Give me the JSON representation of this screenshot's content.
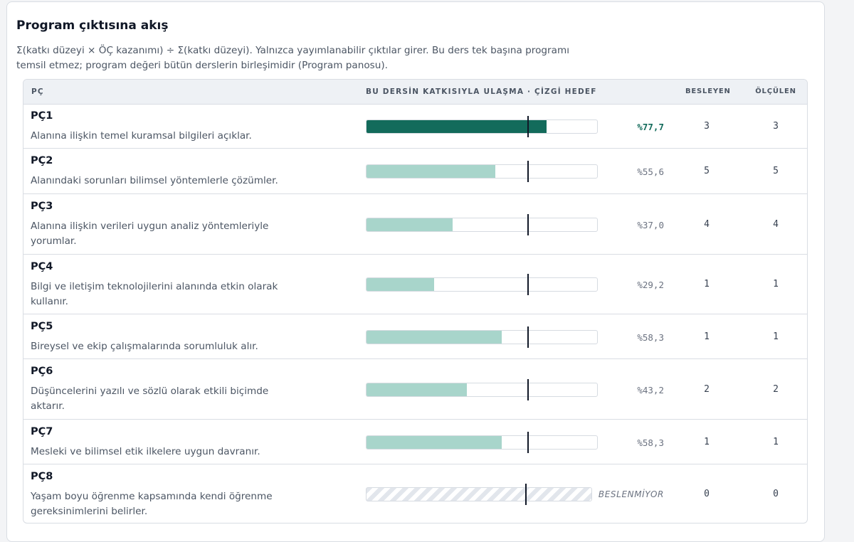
{
  "panel": {
    "title": "Program çıktısına akış",
    "description": "Σ(katkı düzeyi × ÖÇ kazanımı) ÷ Σ(katkı düzeyi). Yalnızca yayımlanabilir çıktılar girer. Bu ders tek başına programı temsil etmez; program değeri bütün derslerin birleşimidir (Program panosu)."
  },
  "table": {
    "headers": {
      "pc": "PÇ",
      "contribution": "BU DERSİN KATKISIYLA ULAŞMA · ÇİZGİ HEDEF",
      "feeding": "BESLEYEN",
      "measured": "ÖLÇÜLEN"
    },
    "target_percent": 70,
    "rows": [
      {
        "code": "PÇ1",
        "text": "Alanına ilişkin temel kuramsal bilgileri açıklar.",
        "value": 77.7,
        "pct_label": "%77,7",
        "feeding": "3",
        "measured": "3",
        "highlight": true
      },
      {
        "code": "PÇ2",
        "text": "Alanındaki sorunları bilimsel yöntemlerle çözümler.",
        "value": 55.6,
        "pct_label": "%55,6",
        "feeding": "5",
        "measured": "5"
      },
      {
        "code": "PÇ3",
        "text": "Alanına ilişkin verileri uygun analiz yöntemleriyle yorumlar.",
        "value": 37.0,
        "pct_label": "%37,0",
        "feeding": "4",
        "measured": "4"
      },
      {
        "code": "PÇ4",
        "text": "Bilgi ve iletişim teknolojilerini alanında etkin olarak kullanır.",
        "value": 29.2,
        "pct_label": "%29,2",
        "feeding": "1",
        "measured": "1"
      },
      {
        "code": "PÇ5",
        "text": "Bireysel ve ekip çalışmalarında sorumluluk alır.",
        "value": 58.3,
        "pct_label": "%58,3",
        "feeding": "1",
        "measured": "1"
      },
      {
        "code": "PÇ6",
        "text": "Düşüncelerini yazılı ve sözlü olarak etkili biçimde aktarır.",
        "value": 43.2,
        "pct_label": "%43,2",
        "feeding": "2",
        "measured": "2"
      },
      {
        "code": "PÇ7",
        "text": "Mesleki ve bilimsel etik ilkelere uygun davranır.",
        "value": 58.3,
        "pct_label": "%58,3",
        "feeding": "1",
        "measured": "1"
      },
      {
        "code": "PÇ8",
        "text": "Yaşam boyu öğrenme kapsamında kendi öğrenme gereksinimlerini belirler.",
        "value": null,
        "pct_label": "BESLENMİYOR",
        "feeding": "0",
        "measured": "0"
      }
    ]
  },
  "colors": {
    "highlight_fill": "#136b5b",
    "normal_fill": "#a8d5cb",
    "target_line": "#111827",
    "unfed_stripe": "#e2e6ec"
  }
}
